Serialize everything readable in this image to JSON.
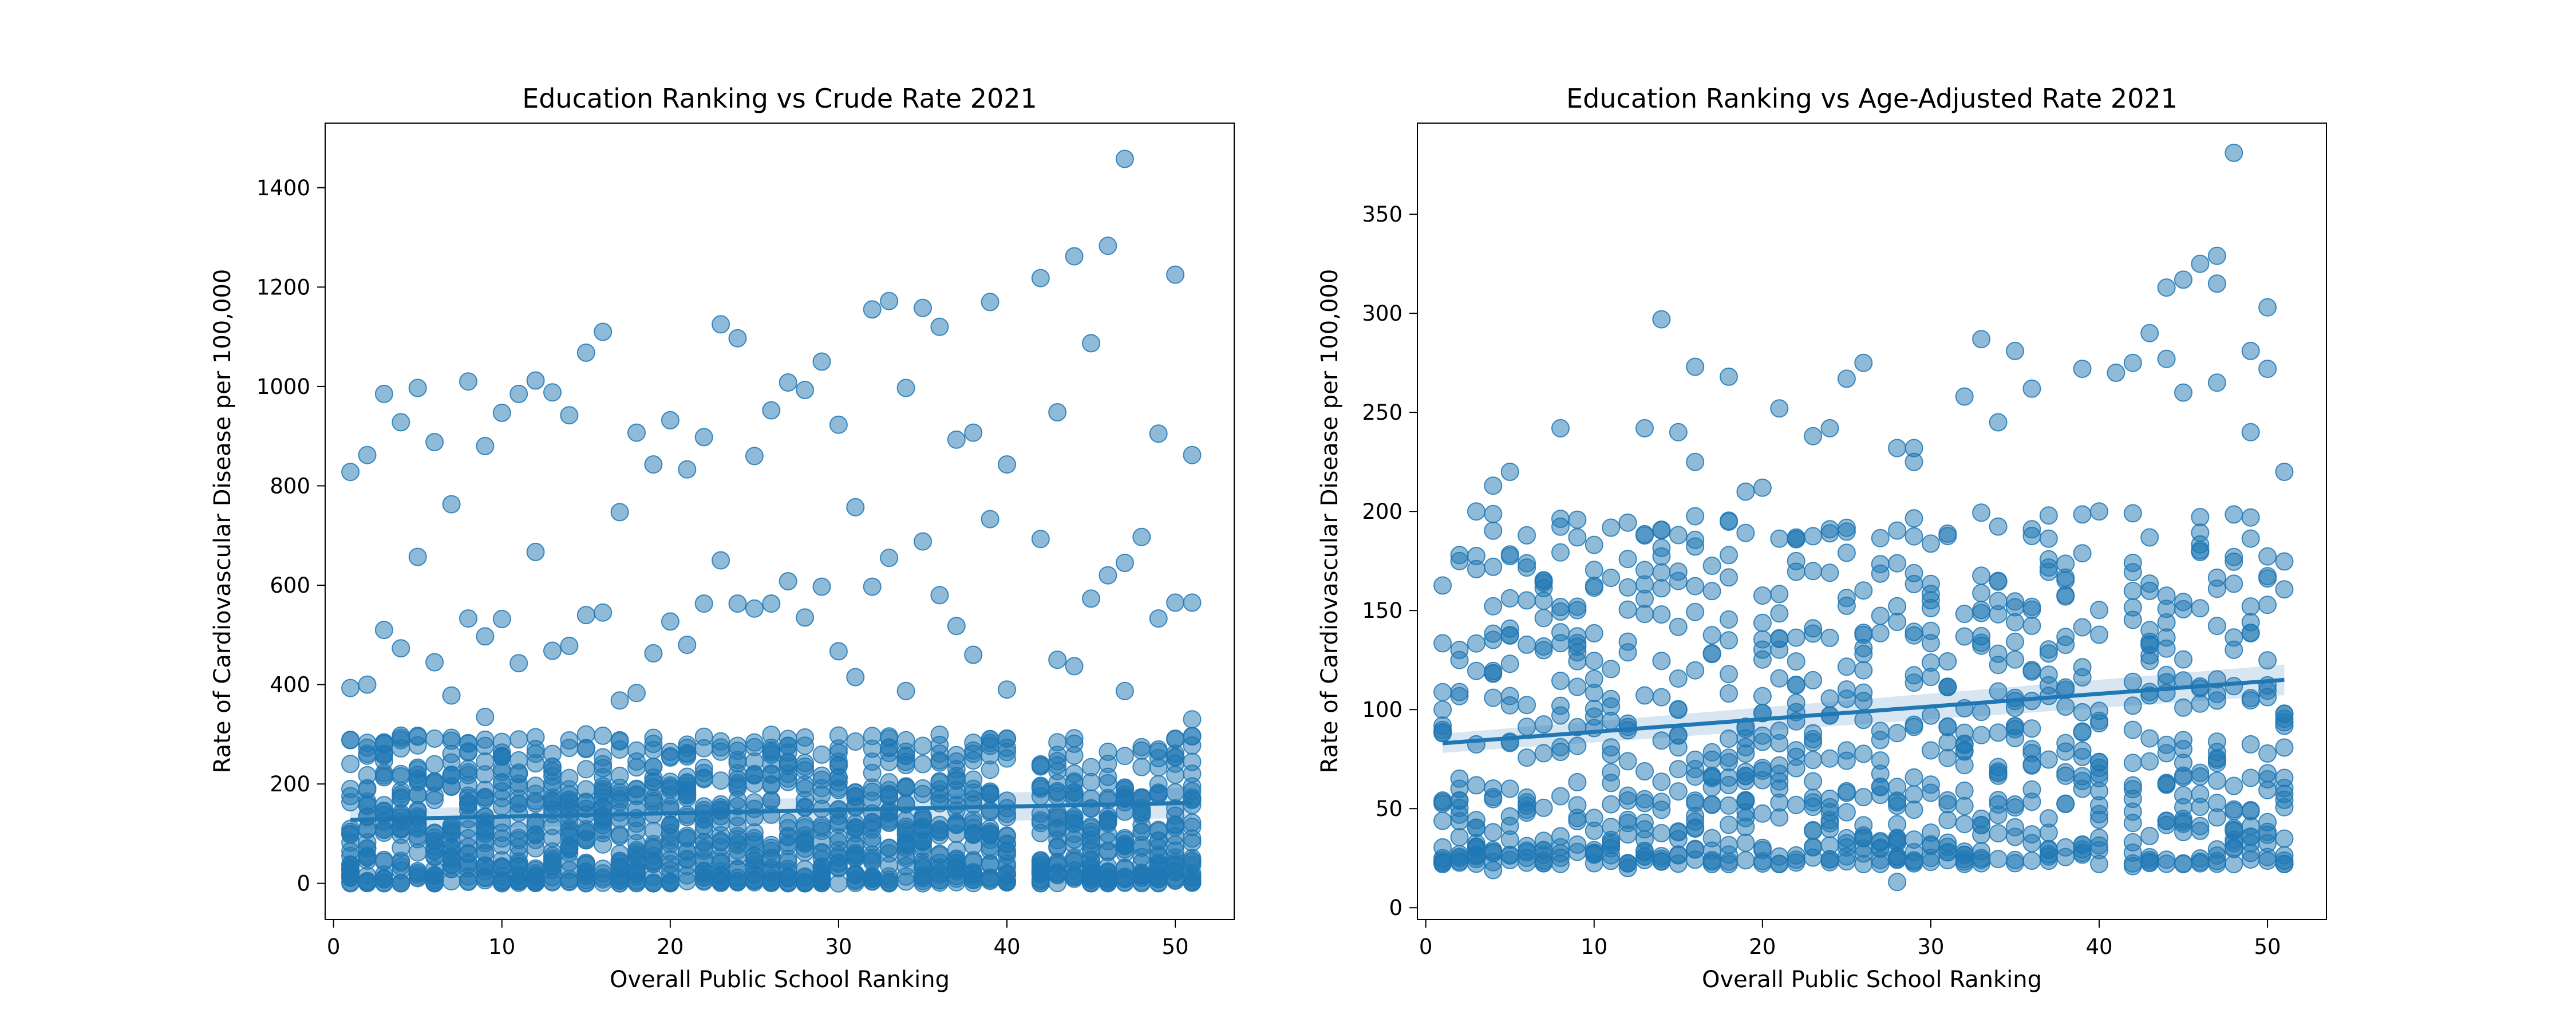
{
  "chart_data": [
    {
      "type": "scatter",
      "title": "Education Ranking vs Crude Rate 2021",
      "xlabel": "Overall Public School Ranking",
      "ylabel": "Rate of Cardiovascular Disease per 100,000",
      "xlim": [
        -0.5,
        53.5
      ],
      "ylim": [
        -73,
        1530
      ],
      "xticks": [
        0,
        10,
        20,
        30,
        40,
        50
      ],
      "yticks": [
        0,
        200,
        400,
        600,
        800,
        1000,
        1200,
        1400
      ],
      "grid": false,
      "legend": "none",
      "colors": {
        "points": "#1f77b4",
        "trend": "#1f77b4",
        "band": "#1f77b4"
      },
      "trend": {
        "x": [
          1,
          51
        ],
        "y": [
          128,
          162
        ]
      },
      "outliers": [
        [
          1,
          828
        ],
        [
          1,
          393
        ],
        [
          2,
          862
        ],
        [
          2,
          400
        ],
        [
          3,
          985
        ],
        [
          3,
          510
        ],
        [
          4,
          928
        ],
        [
          4,
          473
        ],
        [
          5,
          997
        ],
        [
          5,
          657
        ],
        [
          6,
          888
        ],
        [
          6,
          445
        ],
        [
          7,
          763
        ],
        [
          7,
          378
        ],
        [
          8,
          1010
        ],
        [
          8,
          533
        ],
        [
          9,
          880
        ],
        [
          9,
          497
        ],
        [
          9,
          335
        ],
        [
          10,
          947
        ],
        [
          10,
          532
        ],
        [
          11,
          985
        ],
        [
          11,
          443
        ],
        [
          12,
          1012
        ],
        [
          12,
          667
        ],
        [
          13,
          988
        ],
        [
          13,
          468
        ],
        [
          14,
          942
        ],
        [
          14,
          478
        ],
        [
          15,
          1068
        ],
        [
          15,
          540
        ],
        [
          16,
          1110
        ],
        [
          16,
          545
        ],
        [
          17,
          747
        ],
        [
          17,
          368
        ],
        [
          18,
          907
        ],
        [
          18,
          383
        ],
        [
          19,
          843
        ],
        [
          19,
          463
        ],
        [
          20,
          932
        ],
        [
          20,
          527
        ],
        [
          21,
          833
        ],
        [
          21,
          480
        ],
        [
          22,
          898
        ],
        [
          22,
          563
        ],
        [
          23,
          1125
        ],
        [
          23,
          650
        ],
        [
          24,
          1097
        ],
        [
          24,
          563
        ],
        [
          25,
          860
        ],
        [
          25,
          553
        ],
        [
          26,
          952
        ],
        [
          26,
          563
        ],
        [
          27,
          1008
        ],
        [
          27,
          608
        ],
        [
          28,
          993
        ],
        [
          28,
          535
        ],
        [
          29,
          1050
        ],
        [
          29,
          597
        ],
        [
          30,
          923
        ],
        [
          30,
          467
        ],
        [
          31,
          757
        ],
        [
          31,
          415
        ],
        [
          32,
          1155
        ],
        [
          32,
          597
        ],
        [
          33,
          1172
        ],
        [
          33,
          655
        ],
        [
          34,
          997
        ],
        [
          34,
          387
        ],
        [
          35,
          1158
        ],
        [
          35,
          688
        ],
        [
          36,
          1120
        ],
        [
          36,
          580
        ],
        [
          37,
          893
        ],
        [
          37,
          518
        ],
        [
          38,
          907
        ],
        [
          38,
          460
        ],
        [
          39,
          1170
        ],
        [
          39,
          733
        ],
        [
          40,
          843
        ],
        [
          40,
          390
        ],
        [
          42,
          1218
        ],
        [
          42,
          693
        ],
        [
          43,
          948
        ],
        [
          43,
          450
        ],
        [
          44,
          1262
        ],
        [
          44,
          437
        ],
        [
          45,
          1087
        ],
        [
          45,
          573
        ],
        [
          46,
          1283
        ],
        [
          46,
          620
        ],
        [
          47,
          1458
        ],
        [
          47,
          645
        ],
        [
          47,
          387
        ],
        [
          48,
          697
        ],
        [
          49,
          905
        ],
        [
          49,
          533
        ],
        [
          50,
          1225
        ],
        [
          50,
          565
        ],
        [
          51,
          862
        ],
        [
          51,
          565
        ],
        [
          51,
          330
        ]
      ],
      "cluster": {
        "x_min": 1,
        "x_max": 51,
        "x_missing": [
          41
        ],
        "per_x": 26,
        "y_min": 0,
        "y_max": 300,
        "seed": 7
      }
    },
    {
      "type": "scatter",
      "title": "Education Ranking vs Age-Adjusted Rate 2021",
      "xlabel": "Overall Public School Ranking",
      "ylabel": "Rate of Cardiovascular Disease per 100,000",
      "xlim": [
        -0.5,
        53.5
      ],
      "ylim": [
        -6,
        396
      ],
      "xticks": [
        0,
        10,
        20,
        30,
        40,
        50
      ],
      "yticks": [
        0,
        50,
        100,
        150,
        200,
        250,
        300,
        350
      ],
      "grid": false,
      "legend": "none",
      "colors": {
        "points": "#1f77b4",
        "trend": "#1f77b4",
        "band": "#1f77b4"
      },
      "trend": {
        "x": [
          1,
          51
        ],
        "y": [
          83,
          115
        ]
      },
      "outliers": [
        [
          14,
          297
        ],
        [
          16,
          273
        ],
        [
          18,
          268
        ],
        [
          25,
          267
        ],
        [
          26,
          275
        ],
        [
          33,
          287
        ],
        [
          35,
          281
        ],
        [
          41,
          270
        ],
        [
          43,
          290
        ],
        [
          44,
          313
        ],
        [
          45,
          317
        ],
        [
          46,
          325
        ],
        [
          47,
          329
        ],
        [
          47,
          315
        ],
        [
          48,
          381
        ],
        [
          49,
          281
        ],
        [
          50,
          303
        ],
        [
          50,
          272
        ],
        [
          28,
          13
        ],
        [
          42,
          21
        ],
        [
          18,
          22
        ],
        [
          12,
          20
        ],
        [
          4,
          19
        ],
        [
          2,
          178
        ],
        [
          3,
          200
        ],
        [
          4,
          213
        ],
        [
          5,
          220
        ],
        [
          8,
          242
        ],
        [
          13,
          242
        ],
        [
          15,
          240
        ],
        [
          16,
          225
        ],
        [
          21,
          252
        ],
        [
          23,
          238
        ],
        [
          24,
          242
        ],
        [
          28,
          232
        ],
        [
          29,
          232
        ],
        [
          32,
          258
        ],
        [
          34,
          245
        ],
        [
          36,
          262
        ],
        [
          39,
          272
        ],
        [
          42,
          275
        ],
        [
          44,
          277
        ],
        [
          45,
          260
        ],
        [
          49,
          240
        ],
        [
          51,
          220
        ],
        [
          22,
          186
        ],
        [
          19,
          210
        ],
        [
          29,
          225
        ],
        [
          20,
          212
        ],
        [
          40,
          200
        ],
        [
          47,
          265
        ]
      ],
      "cluster": {
        "x_min": 1,
        "x_max": 51,
        "x_missing": [
          41
        ],
        "per_x": 18,
        "y_min": 22,
        "y_max": 200,
        "seed": 13
      }
    }
  ]
}
